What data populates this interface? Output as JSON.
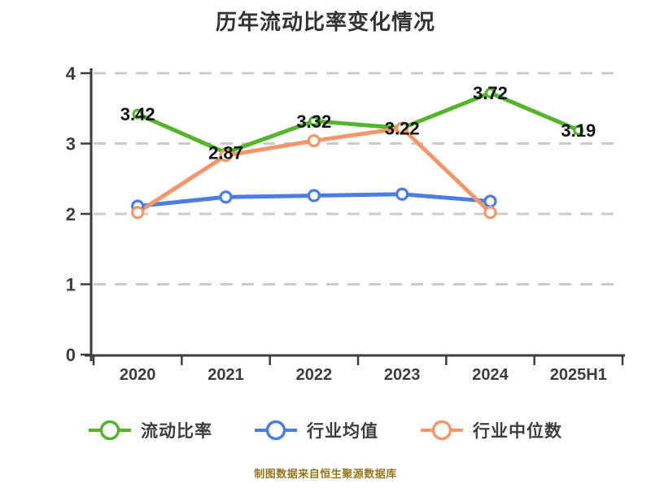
{
  "title": "历年流动比率变化情况",
  "source_note": "制图数据来自恒生聚源数据库",
  "chart_data": {
    "type": "line",
    "title": "历年流动比率变化情况",
    "categories": [
      "2020",
      "2021",
      "2022",
      "2023",
      "2024",
      "2025H1"
    ],
    "series": [
      {
        "name": "流动比率",
        "color": "#53b52a",
        "values": [
          3.42,
          2.87,
          3.32,
          3.22,
          3.72,
          3.19
        ],
        "point_labels": [
          "3.42",
          "2.87",
          "3.32",
          "3.22",
          "3.72",
          "3.19"
        ],
        "labels_shown": true
      },
      {
        "name": "行业均值",
        "color": "#4b7de6",
        "values": [
          2.11,
          2.24,
          2.26,
          2.28,
          2.18,
          null
        ],
        "labels_shown": false
      },
      {
        "name": "行业中位数",
        "color": "#f59669",
        "values": [
          2.02,
          2.83,
          3.04,
          3.22,
          2.02,
          null
        ],
        "labels_shown": false
      }
    ],
    "ylim": [
      0,
      4
    ],
    "yticks": [
      0,
      1,
      2,
      3,
      4
    ],
    "grid": "horizontal-dashed",
    "legend_position": "bottom",
    "marker": "open-circle"
  },
  "legend": {
    "items": [
      {
        "label": "流动比率",
        "color": "#53b52a"
      },
      {
        "label": "行业均值",
        "color": "#4b7de6"
      },
      {
        "label": "行业中位数",
        "color": "#f59669"
      }
    ]
  },
  "colors": {
    "background": "#ffffff",
    "axis": "#3d3d3d",
    "grid": "#cbcbcb",
    "data_label": "#121212",
    "title_text": "#333333",
    "source_text": "#97781e",
    "legend_text": "#3d3d3d"
  }
}
